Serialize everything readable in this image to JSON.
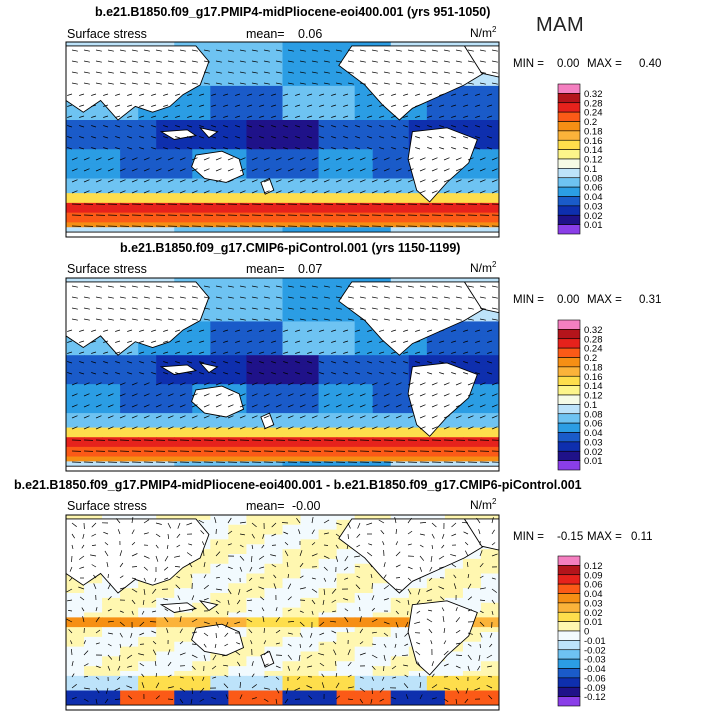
{
  "season": "MAM",
  "colors": {
    "ocean_fill": "#2e7dd8",
    "land": "#ffffff",
    "frame": "#000000"
  },
  "chart_data": [
    {
      "type": "heatmap",
      "title": "b.e21.B1850.f09_g17.PMIP4-midPliocene-eoi400.001 (yrs 951-1050)",
      "variable": "Surface stress",
      "mean_label": "mean=",
      "mean": "0.06",
      "units": "N/m",
      "units_exp": "2",
      "min_label": "MIN =",
      "min": "0.00",
      "max_label": "MAX =",
      "max": "0.40",
      "overlay": "wind stress vectors",
      "colorbar": {
        "levels": [
          "0.32",
          "0.28",
          "0.24",
          "0.2",
          "0.18",
          "0.16",
          "0.14",
          "0.12",
          "0.1",
          "0.08",
          "0.06",
          "0.04",
          "0.03",
          "0.02",
          "0.01"
        ],
        "colors": [
          "#f47fc0",
          "#b4141b",
          "#e6221c",
          "#fb5a17",
          "#f68f14",
          "#fbb33a",
          "#fede4c",
          "#fdf58a",
          "#f6fbe6",
          "#bde3fa",
          "#6ec3f2",
          "#2b9de4",
          "#1a5bc9",
          "#0e2fae",
          "#1f1289",
          "#8a3ee8"
        ]
      }
    },
    {
      "type": "heatmap",
      "title": "b.e21.B1850.f09_g17.CMIP6-piControl.001 (yrs 1150-1199)",
      "variable": "Surface stress",
      "mean_label": "mean=",
      "mean": "0.07",
      "units": "N/m",
      "units_exp": "2",
      "min_label": "MIN =",
      "min": "0.00",
      "max_label": "MAX =",
      "max": "0.31",
      "overlay": "wind stress vectors",
      "colorbar": {
        "levels": [
          "0.32",
          "0.28",
          "0.24",
          "0.2",
          "0.18",
          "0.16",
          "0.14",
          "0.12",
          "0.1",
          "0.08",
          "0.06",
          "0.04",
          "0.03",
          "0.02",
          "0.01"
        ],
        "colors": [
          "#f47fc0",
          "#b4141b",
          "#e6221c",
          "#fb5a17",
          "#f68f14",
          "#fbb33a",
          "#fede4c",
          "#fdf58a",
          "#f6fbe6",
          "#bde3fa",
          "#6ec3f2",
          "#2b9de4",
          "#1a5bc9",
          "#0e2fae",
          "#1f1289",
          "#8a3ee8"
        ]
      }
    },
    {
      "type": "heatmap",
      "title": "b.e21.B1850.f09_g17.PMIP4-midPliocene-eoi400.001 - b.e21.B1850.f09_g17.CMIP6-piControl.001",
      "variable": "Surface stress",
      "mean_label": "mean=",
      "mean": "-0.00",
      "units": "N/m",
      "units_exp": "2",
      "min_label": "MIN =",
      "min": "-0.15",
      "max_label": "MAX =",
      "max": "0.11",
      "overlay": "wind stress difference vectors",
      "colorbar": {
        "levels": [
          "0.12",
          "0.09",
          "0.06",
          "0.04",
          "0.03",
          "0.02",
          "0.01",
          "0",
          "-0.01",
          "-0.02",
          "-0.03",
          "-0.04",
          "-0.06",
          "-0.09",
          "-0.12"
        ],
        "colors": [
          "#f47fc0",
          "#b4141b",
          "#e6221c",
          "#fb5a17",
          "#f68f14",
          "#fbb33a",
          "#fede4c",
          "#fff7b0",
          "#f2fafe",
          "#bde3fa",
          "#6ec3f2",
          "#2b9de4",
          "#1a5bc9",
          "#0e2fae",
          "#1f1289",
          "#8a3ee8"
        ]
      }
    }
  ]
}
